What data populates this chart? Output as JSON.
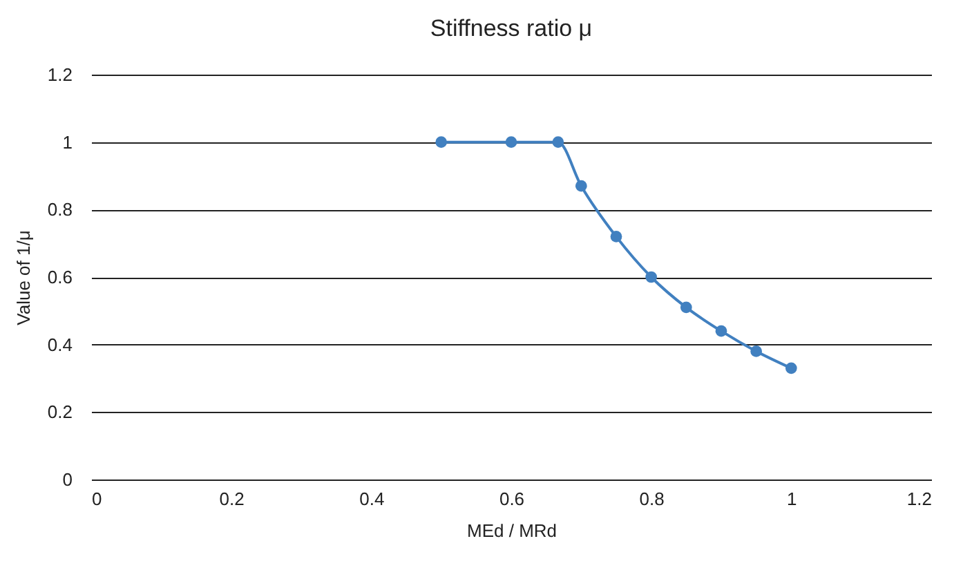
{
  "chart_data": {
    "type": "line",
    "title": "Stiffness ratio μ",
    "xlabel": "MEd / MRd",
    "ylabel": "Value of 1/μ",
    "x": [
      0.5,
      0.6,
      0.667,
      0.7,
      0.75,
      0.8,
      0.85,
      0.9,
      0.95,
      1.0
    ],
    "series": [
      {
        "color": "#4180c0",
        "values": [
          1,
          1,
          1,
          0.87,
          0.72,
          0.6,
          0.51,
          0.44,
          0.38,
          0.33
        ]
      }
    ],
    "xlim": [
      0,
      1.2
    ],
    "xticks": [
      0,
      0.2,
      0.4,
      0.6,
      0.8,
      1,
      1.2
    ],
    "ylim": [
      0,
      1.2
    ],
    "yticks": [
      0,
      0.2,
      0.4,
      0.6,
      0.8,
      1,
      1.2
    ],
    "grid": "y",
    "marker": "circle",
    "line_style": "solid",
    "legend": false
  }
}
